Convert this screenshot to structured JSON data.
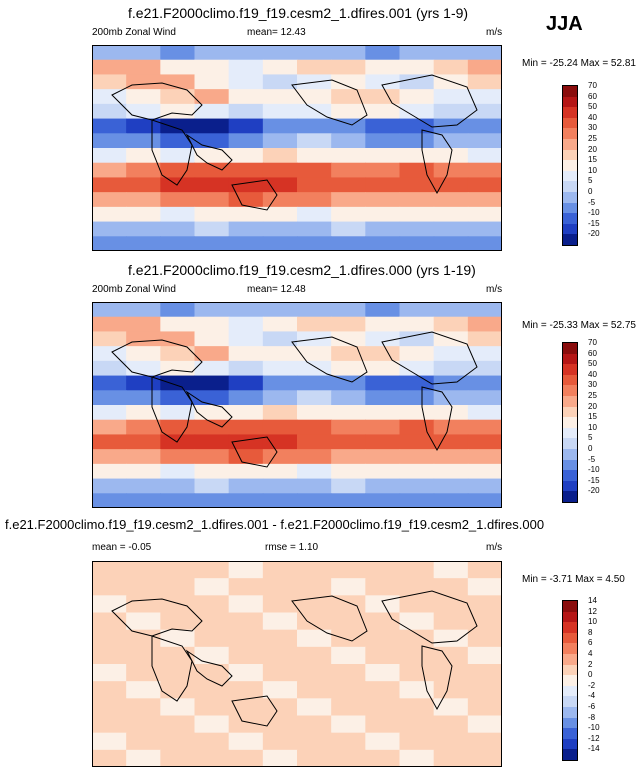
{
  "season": "JJA",
  "colors": {
    "full": [
      "#0a1f8c",
      "#1f3fc2",
      "#3a62d6",
      "#6890e4",
      "#9cb8ef",
      "#c8d8f5",
      "#e4ecfa",
      "#fcf0e6",
      "#fcd2b8",
      "#f9a98a",
      "#f2805e",
      "#e75a3b",
      "#d63324",
      "#b51616",
      "#8a0d0d"
    ],
    "diff": [
      "#0a1f8c",
      "#1f3fc2",
      "#3a62d6",
      "#6890e4",
      "#9cb8ef",
      "#c8d8f5",
      "#e4ecfa",
      "#fcf0e6",
      "#fcd2b8",
      "#f9a98a",
      "#f2805e",
      "#e75a3b",
      "#d63324",
      "#b51616",
      "#8a0d0d"
    ]
  },
  "panels": [
    {
      "title": "f.e21.F2000climo.f19_f19.cesm2_1.dfires.001 (yrs 1-9)",
      "left_label": "200mb Zonal Wind",
      "mid_label": "mean=  12.43",
      "units": "m/s",
      "minmax": "Min = -25.24 Max =  52.81",
      "kind": "full"
    },
    {
      "title": "f.e21.F2000climo.f19_f19.cesm2_1.dfires.000 (yrs 1-19)",
      "left_label": "200mb Zonal Wind",
      "mid_label": "mean=  12.48",
      "units": "m/s",
      "minmax": "Min = -25.33 Max =  52.75",
      "kind": "full"
    },
    {
      "title": "f.e21.F2000climo.f19_f19.cesm2_1.dfires.001 - f.e21.F2000climo.f19_f19.cesm2_1.dfires.000",
      "left_label": "mean =  -0.05",
      "mid_label": "rmse =   1.10",
      "units": "m/s",
      "minmax": "Min =  -3.71 Max =   4.50",
      "kind": "diff"
    }
  ],
  "chart_data": [
    {
      "type": "heatmap",
      "title": "f.e21.F2000climo.f19_f19.cesm2_1.dfires.001 (yrs 1-9)",
      "variable": "200mb Zonal Wind",
      "units": "m/s",
      "mean": 12.43,
      "min": -25.24,
      "max": 52.81,
      "colorbar_levels": [
        "-20",
        "-15",
        "-10",
        "-5",
        "0",
        "5",
        "10",
        "15",
        "20",
        "25",
        "30",
        "40",
        "50",
        "60",
        "70"
      ],
      "xlim": [
        0,
        360
      ],
      "ylim": [
        -90,
        90
      ],
      "field": [
        [
          -5,
          -3,
          -6,
          -4,
          -2,
          -5,
          -3,
          -4,
          -6,
          -5,
          -4,
          -3
        ],
        [
          22,
          20,
          14,
          10,
          8,
          12,
          16,
          18,
          10,
          12,
          18,
          24
        ],
        [
          18,
          24,
          20,
          12,
          6,
          4,
          8,
          14,
          6,
          4,
          10,
          16
        ],
        [
          8,
          10,
          18,
          20,
          14,
          10,
          12,
          16,
          18,
          14,
          8,
          6
        ],
        [
          2,
          6,
          10,
          6,
          4,
          8,
          6,
          10,
          12,
          8,
          4,
          2
        ],
        [
          -12,
          -18,
          -22,
          -24,
          -16,
          -8,
          -6,
          -10,
          -14,
          -12,
          -10,
          -10
        ],
        [
          -6,
          -10,
          -14,
          -12,
          -6,
          -2,
          0,
          -4,
          -8,
          -6,
          -4,
          -4
        ],
        [
          6,
          10,
          8,
          10,
          14,
          18,
          14,
          10,
          12,
          14,
          10,
          8
        ],
        [
          24,
          28,
          30,
          34,
          38,
          36,
          30,
          26,
          28,
          30,
          28,
          26
        ],
        [
          34,
          38,
          42,
          46,
          48,
          44,
          38,
          36,
          34,
          36,
          34,
          32
        ],
        [
          22,
          24,
          26,
          28,
          30,
          28,
          26,
          24,
          22,
          24,
          22,
          22
        ],
        [
          12,
          10,
          8,
          10,
          12,
          10,
          8,
          10,
          12,
          10,
          10,
          12
        ],
        [
          -2,
          -4,
          -2,
          0,
          -2,
          -4,
          -2,
          0,
          -2,
          -4,
          -2,
          -2
        ],
        [
          -8,
          -6,
          -8,
          -6,
          -8,
          -6,
          -8,
          -6,
          -8,
          -6,
          -8,
          -6
        ]
      ]
    },
    {
      "type": "heatmap",
      "title": "f.e21.F2000climo.f19_f19.cesm2_1.dfires.000 (yrs 1-19)",
      "variable": "200mb Zonal Wind",
      "units": "m/s",
      "mean": 12.48,
      "min": -25.33,
      "max": 52.75,
      "colorbar_levels": [
        "-20",
        "-15",
        "-10",
        "-5",
        "0",
        "5",
        "10",
        "15",
        "20",
        "25",
        "30",
        "40",
        "50",
        "60",
        "70"
      ],
      "xlim": [
        0,
        360
      ],
      "ylim": [
        -90,
        90
      ],
      "field": [
        [
          -5,
          -3,
          -6,
          -4,
          -2,
          -5,
          -3,
          -4,
          -6,
          -5,
          -4,
          -3
        ],
        [
          22,
          20,
          14,
          10,
          8,
          12,
          16,
          18,
          10,
          12,
          18,
          24
        ],
        [
          18,
          24,
          20,
          12,
          6,
          4,
          8,
          14,
          6,
          4,
          10,
          16
        ],
        [
          8,
          10,
          18,
          20,
          14,
          10,
          12,
          16,
          18,
          14,
          8,
          6
        ],
        [
          2,
          6,
          10,
          6,
          4,
          8,
          6,
          10,
          12,
          8,
          4,
          2
        ],
        [
          -12,
          -18,
          -22,
          -24,
          -16,
          -8,
          -6,
          -10,
          -14,
          -12,
          -10,
          -10
        ],
        [
          -6,
          -10,
          -14,
          -12,
          -6,
          -2,
          0,
          -4,
          -8,
          -6,
          -4,
          -4
        ],
        [
          6,
          10,
          8,
          10,
          14,
          18,
          14,
          10,
          12,
          14,
          10,
          8
        ],
        [
          24,
          28,
          30,
          34,
          38,
          36,
          30,
          26,
          28,
          30,
          28,
          26
        ],
        [
          34,
          38,
          42,
          46,
          48,
          44,
          38,
          36,
          34,
          36,
          34,
          32
        ],
        [
          22,
          24,
          26,
          28,
          30,
          28,
          26,
          24,
          22,
          24,
          22,
          22
        ],
        [
          12,
          10,
          8,
          10,
          12,
          10,
          8,
          10,
          12,
          10,
          10,
          12
        ],
        [
          -2,
          -4,
          -2,
          0,
          -2,
          -4,
          -2,
          0,
          -2,
          -4,
          -2,
          -2
        ],
        [
          -8,
          -6,
          -8,
          -6,
          -8,
          -6,
          -8,
          -6,
          -8,
          -6,
          -8,
          -6
        ]
      ]
    },
    {
      "type": "heatmap",
      "title": "f.e21.F2000climo.f19_f19.cesm2_1.dfires.001 - f.e21.F2000climo.f19_f19.cesm2_1.dfires.000",
      "units": "m/s",
      "mean": -0.05,
      "rmse": 1.1,
      "min": -3.71,
      "max": 4.5,
      "colorbar_levels": [
        "-14",
        "-12",
        "-10",
        "-8",
        "-6",
        "-4",
        "-2",
        "0",
        "2",
        "4",
        "6",
        "8",
        "10",
        "12",
        "14"
      ],
      "xlim": [
        0,
        360
      ],
      "ylim": [
        -90,
        90
      ],
      "field": [
        [
          1,
          0,
          1,
          0,
          -1,
          0,
          1,
          0,
          1,
          0,
          -1,
          0
        ],
        [
          0,
          1,
          0,
          -1,
          0,
          1,
          0,
          -1,
          0,
          1,
          0,
          -1
        ],
        [
          -1,
          0,
          1,
          0,
          -1,
          0,
          1,
          0,
          -1,
          0,
          1,
          0
        ],
        [
          0,
          -1,
          0,
          1,
          0,
          -1,
          0,
          1,
          0,
          -1,
          0,
          1
        ],
        [
          1,
          0,
          -1,
          0,
          1,
          0,
          -1,
          0,
          1,
          0,
          -1,
          0
        ],
        [
          0,
          1,
          0,
          -1,
          0,
          1,
          0,
          -1,
          0,
          1,
          0,
          -1
        ],
        [
          -1,
          0,
          1,
          0,
          -1,
          0,
          1,
          0,
          -1,
          0,
          1,
          0
        ],
        [
          0,
          -1,
          0,
          1,
          0,
          -1,
          0,
          1,
          0,
          -1,
          0,
          1
        ],
        [
          1,
          0,
          -1,
          0,
          1,
          0,
          -1,
          0,
          1,
          0,
          -1,
          0
        ],
        [
          0,
          1,
          0,
          -1,
          0,
          1,
          0,
          -1,
          0,
          1,
          0,
          -1
        ],
        [
          -1,
          0,
          1,
          0,
          -1,
          0,
          1,
          0,
          -1,
          0,
          1,
          0
        ],
        [
          0,
          -1,
          0,
          1,
          0,
          -1,
          0,
          1,
          0,
          -1,
          0,
          1
        ]
      ]
    }
  ]
}
